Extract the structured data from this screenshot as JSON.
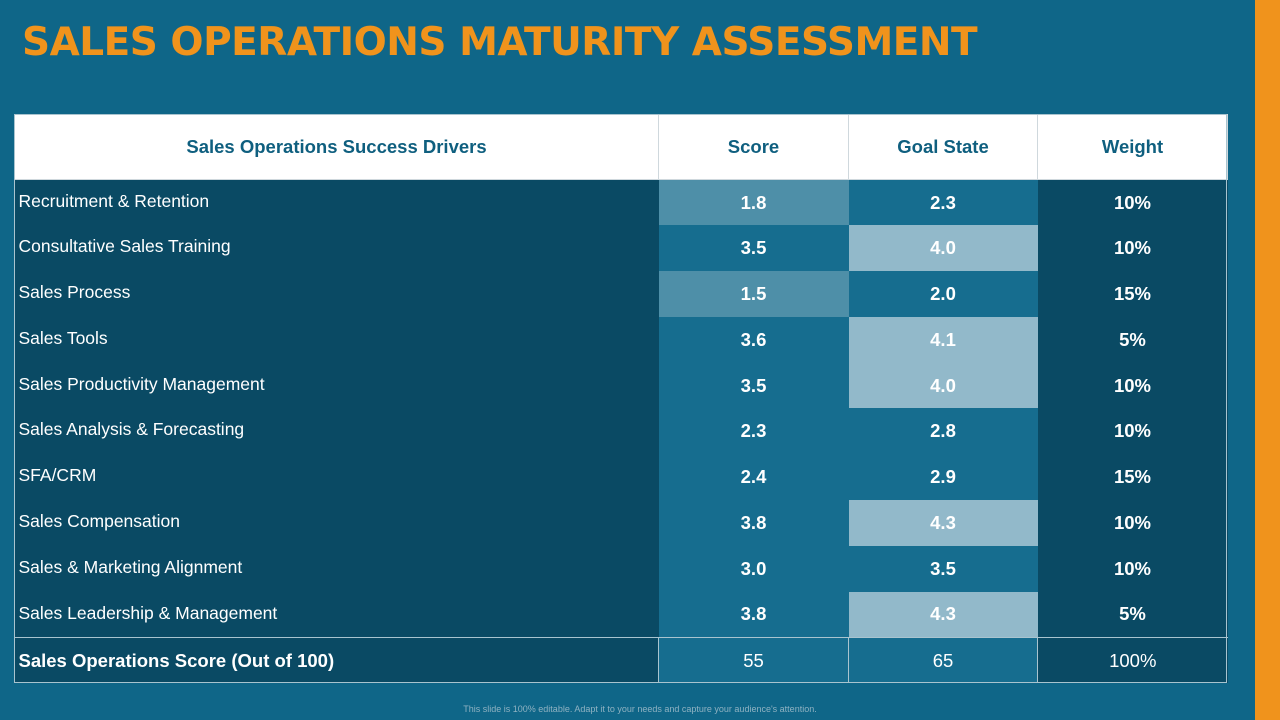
{
  "title": "SALES OPERATIONS MATURITY ASSESSMENT",
  "table": {
    "headers": [
      "Sales Operations  Success Drivers",
      "Score",
      "Goal State",
      "Weight"
    ],
    "rows": [
      {
        "driver": "Recruitment & Retention",
        "score": "1.8",
        "goal": "2.3",
        "weight": "10%"
      },
      {
        "driver": "Consultative Sales Training",
        "score": "3.5",
        "goal": "4.0",
        "weight": "10%"
      },
      {
        "driver": "Sales Process",
        "score": "1.5",
        "goal": "2.0",
        "weight": "15%"
      },
      {
        "driver": "Sales Tools",
        "score": "3.6",
        "goal": "4.1",
        "weight": "5%"
      },
      {
        "driver": "Sales Productivity Management",
        "score": "3.5",
        "goal": "4.0",
        "weight": "10%"
      },
      {
        "driver": "Sales Analysis & Forecasting",
        "score": "2.3",
        "goal": "2.8",
        "weight": "10%"
      },
      {
        "driver": "SFA/CRM",
        "score": "2.4",
        "goal": "2.9",
        "weight": "15%"
      },
      {
        "driver": "Sales Compensation",
        "score": "3.8",
        "goal": "4.3",
        "weight": "10%"
      },
      {
        "driver": "Sales & Marketing Alignment",
        "score": "3.0",
        "goal": "3.5",
        "weight": "10%"
      },
      {
        "driver": "Sales Leadership & Management",
        "score": "3.8",
        "goal": "4.3",
        "weight": "5%"
      }
    ],
    "total": {
      "label": "Sales Operations Score (Out of 100)",
      "score": "55",
      "goal": "65",
      "weight": "100%"
    }
  },
  "footnote": "This slide is 100% editable. Adapt it to your needs and capture your audience's attention.",
  "colors": {
    "accent": "#f0931c",
    "background": "#0f6688",
    "dark_cell": "#0a4a64"
  }
}
